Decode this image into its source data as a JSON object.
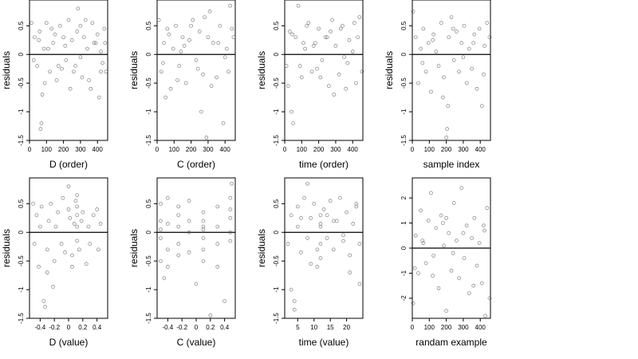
{
  "page": {
    "background": "#ffffff",
    "point_color": "#555555"
  },
  "chart_data": [
    {
      "type": "scatter",
      "xlabel": "D (order)",
      "ylabel": "residuals",
      "xlim": [
        0,
        460
      ],
      "ylim": [
        -1.5,
        0.95
      ],
      "xticks": [
        0,
        100,
        200,
        300,
        400
      ],
      "yticks": [
        0.5,
        0,
        -0.5,
        -1,
        -1.5
      ],
      "zero_line": true,
      "x": [
        12,
        30,
        45,
        60,
        70,
        85,
        100,
        120,
        140,
        160,
        180,
        200,
        215,
        230,
        250,
        270,
        285,
        300,
        310,
        320,
        340,
        360,
        380,
        400,
        410,
        420,
        440,
        450,
        25,
        55,
        90,
        130,
        170,
        210,
        260,
        330,
        350,
        390,
        430,
        65,
        75,
        110,
        150,
        190,
        240,
        280,
        300,
        370,
        420,
        445
      ],
      "y": [
        0.55,
        0.3,
        -0.2,
        0.4,
        -1.2,
        0.1,
        0.55,
        -0.3,
        0.2,
        -0.45,
        0.5,
        0.3,
        -0.1,
        0.6,
        0.25,
        -0.2,
        0.8,
        0.5,
        -0.4,
        0.3,
        0.1,
        -0.6,
        0.2,
        0.35,
        -0.75,
        0.05,
        0.45,
        -0.3,
        -0.1,
        0.25,
        -0.5,
        0.45,
        -0.2,
        0.15,
        -0.3,
        0.6,
        -0.45,
        0.2,
        -0.15,
        -1.3,
        -0.7,
        0.1,
        0.35,
        -0.25,
        -0.6,
        0.4,
        -0.05,
        0.55,
        -0.3,
        0.2
      ]
    },
    {
      "type": "scatter",
      "xlabel": "C (order)",
      "ylabel": "residuals",
      "xlim": [
        0,
        460
      ],
      "ylim": [
        -1.5,
        0.95
      ],
      "xticks": [
        0,
        100,
        200,
        300,
        400
      ],
      "yticks": [
        0.5,
        0,
        -0.5,
        -1,
        -1.5
      ],
      "zero_line": true,
      "x": [
        10,
        25,
        40,
        60,
        80,
        95,
        110,
        130,
        150,
        170,
        190,
        210,
        230,
        250,
        270,
        290,
        310,
        330,
        350,
        370,
        390,
        410,
        430,
        450,
        35,
        70,
        120,
        160,
        200,
        240,
        280,
        320,
        360,
        400,
        440,
        50,
        140,
        260,
        300,
        420
      ],
      "y": [
        0.6,
        -0.3,
        0.2,
        0.45,
        -0.6,
        0.1,
        0.5,
        -0.2,
        0.3,
        -0.5,
        0.25,
        0.6,
        -0.1,
        0.4,
        -0.35,
        -1.45,
        0.75,
        0.2,
        -0.4,
        0.5,
        -1.2,
        0.1,
        0.85,
        0.3,
        -0.15,
        0.35,
        -0.45,
        0.15,
        0.5,
        -0.25,
        0.65,
        -0.55,
        0.2,
        -0.05,
        0.45,
        -0.75,
        0.05,
        -1.0,
        0.3,
        -0.3
      ]
    },
    {
      "type": "scatter",
      "xlabel": "time (order)",
      "ylabel": "residuals",
      "xlim": [
        0,
        460
      ],
      "ylim": [
        -1.5,
        0.95
      ],
      "xticks": [
        0,
        100,
        200,
        300,
        400
      ],
      "yticks": [
        0.5,
        0,
        -0.5,
        -1,
        -1.5
      ],
      "zero_line": true,
      "x": [
        10,
        30,
        50,
        65,
        80,
        100,
        120,
        140,
        160,
        180,
        200,
        220,
        240,
        260,
        280,
        300,
        320,
        340,
        360,
        380,
        400,
        420,
        440,
        455,
        20,
        45,
        90,
        130,
        170,
        210,
        250,
        290,
        330,
        370,
        410,
        40,
        110,
        190,
        270,
        350,
        430
      ],
      "y": [
        -0.2,
        0.4,
        -1.2,
        0.3,
        0.85,
        -0.4,
        0.1,
        0.55,
        -0.3,
        0.2,
        0.45,
        -0.1,
        0.3,
        -0.55,
        0.6,
        0.15,
        -0.35,
        0.5,
        -0.6,
        0.25,
        0.05,
        -0.5,
        0.65,
        -0.3,
        -0.55,
        0.35,
        -0.2,
        0.5,
        0.15,
        -0.4,
        0.3,
        -0.7,
        0.45,
        -0.15,
        0.55,
        -1.0,
        0.2,
        -0.25,
        0.4,
        -0.05,
        0.3
      ]
    },
    {
      "type": "scatter",
      "xlabel": "sample index",
      "ylabel": "residuals",
      "xlim": [
        0,
        460
      ],
      "ylim": [
        -1.5,
        0.95
      ],
      "xticks": [
        0,
        100,
        200,
        300,
        400
      ],
      "yticks": [
        0.5,
        0,
        -0.5,
        -1,
        -1.5
      ],
      "zero_line": true,
      "x": [
        5,
        20,
        35,
        50,
        65,
        80,
        95,
        110,
        125,
        140,
        155,
        170,
        185,
        200,
        215,
        230,
        245,
        260,
        275,
        290,
        305,
        320,
        335,
        350,
        365,
        380,
        395,
        410,
        425,
        440,
        455,
        60,
        120,
        180,
        240,
        300,
        360,
        420,
        205,
        210
      ],
      "y": [
        0.75,
        0.3,
        -0.5,
        0.1,
        0.45,
        -0.3,
        0.2,
        -0.65,
        0.35,
        0.05,
        -0.2,
        0.55,
        -0.4,
        -1.45,
        0.3,
        0.65,
        -0.1,
        0.4,
        -0.3,
        0.2,
        0.5,
        -0.5,
        0.1,
        -0.25,
        0.35,
        -0.6,
        0.45,
        -0.9,
        0.15,
        0.55,
        0.3,
        -0.15,
        0.25,
        -0.75,
        0.45,
        -0.05,
        0.2,
        -0.35,
        -1.3,
        -0.9
      ]
    },
    {
      "type": "scatter",
      "xlabel": "D (value)",
      "ylabel": "residuals",
      "xlim": [
        -0.55,
        0.55
      ],
      "ylim": [
        -1.5,
        0.95
      ],
      "xticks": [
        -0.4,
        -0.2,
        0.0,
        0.2,
        0.4
      ],
      "yticks": [
        0.5,
        0,
        -0.5,
        -1,
        -1.5
      ],
      "zero_line": true,
      "x": [
        -0.5,
        -0.48,
        -0.45,
        -0.42,
        -0.4,
        -0.38,
        -0.35,
        -0.3,
        -0.28,
        -0.25,
        -0.2,
        -0.18,
        -0.15,
        -0.1,
        -0.08,
        -0.05,
        0.0,
        0.02,
        0.05,
        0.08,
        0.1,
        0.12,
        0.12,
        0.12,
        0.12,
        0.12,
        0.15,
        0.18,
        0.2,
        0.25,
        0.28,
        0.3,
        0.35,
        0.4,
        0.42,
        0.45,
        -0.33,
        -0.3,
        -0.22,
        0.0,
        0.05
      ],
      "y": [
        0.5,
        -0.2,
        0.3,
        -0.6,
        0.1,
        0.45,
        -1.2,
        -0.3,
        0.2,
        0.5,
        -0.5,
        0.1,
        0.35,
        -0.2,
        0.6,
        -0.35,
        0.4,
        0.25,
        -0.4,
        0.15,
        0.55,
        0.1,
        -0.15,
        0.3,
        0.45,
        0.65,
        -0.3,
        0.2,
        0.35,
        -0.55,
        0.1,
        -0.2,
        0.3,
        0.4,
        -0.3,
        0.15,
        -1.3,
        -0.7,
        -0.95,
        0.8,
        -0.6
      ]
    },
    {
      "type": "scatter",
      "xlabel": "C (value)",
      "ylabel": "residuals",
      "xlim": [
        -0.55,
        0.55
      ],
      "ylim": [
        -1.5,
        0.95
      ],
      "xticks": [
        -0.4,
        -0.2,
        0.0,
        0.2,
        0.4
      ],
      "yticks": [
        0.5,
        0,
        -0.5,
        -1,
        -1.5
      ],
      "zero_line": true,
      "x": [
        -0.5,
        -0.5,
        -0.5,
        -0.5,
        -0.5,
        -0.4,
        -0.4,
        -0.4,
        -0.4,
        -0.25,
        -0.25,
        -0.25,
        -0.25,
        -0.25,
        -0.1,
        -0.1,
        -0.1,
        -0.1,
        0.1,
        0.1,
        0.1,
        0.1,
        0.1,
        0.1,
        0.1,
        0.3,
        0.3,
        0.3,
        0.3,
        0.48,
        0.48,
        0.48,
        0.48,
        0.48,
        0.5,
        0.0,
        0.2,
        -0.45,
        0.4
      ],
      "y": [
        0.5,
        0.2,
        -0.1,
        -0.5,
        0.05,
        0.6,
        -0.3,
        0.15,
        -0.6,
        0.45,
        0.1,
        -0.2,
        -0.4,
        0.3,
        0.55,
        0.0,
        -0.35,
        0.2,
        0.35,
        0.1,
        -0.1,
        -0.3,
        0.2,
        -0.5,
        0.05,
        0.45,
        -0.2,
        0.1,
        -0.6,
        0.6,
        0.25,
        -0.15,
        0.4,
        0.0,
        0.85,
        -0.9,
        -1.45,
        -0.8,
        -1.2
      ]
    },
    {
      "type": "scatter",
      "xlabel": "time (value)",
      "ylabel": "residuals",
      "xlim": [
        1,
        25
      ],
      "ylim": [
        -1.5,
        0.95
      ],
      "xticks": [
        5,
        10,
        15,
        20
      ],
      "yticks": [
        0.5,
        0,
        -0.5,
        -1,
        -1.5
      ],
      "zero_line": true,
      "x": [
        2,
        3,
        4,
        5,
        5,
        6,
        7,
        8,
        9,
        10,
        11,
        12,
        12,
        12,
        12,
        12,
        13,
        14,
        15,
        16,
        17,
        18,
        19,
        20,
        21,
        22,
        23,
        24,
        3,
        6,
        9,
        14,
        19,
        23,
        4,
        8,
        11,
        16,
        21,
        24
      ],
      "y": [
        -0.2,
        0.3,
        -1.2,
        0.45,
        0.1,
        -0.35,
        0.6,
        -0.1,
        0.25,
        0.5,
        -0.3,
        0.1,
        -0.2,
        0.3,
        -0.45,
        0.15,
        0.4,
        -0.1,
        0.55,
        -0.3,
        0.2,
        0.6,
        -0.05,
        0.35,
        -0.4,
        0.15,
        0.5,
        -0.2,
        -1.0,
        0.25,
        -0.55,
        0.3,
        -0.15,
        0.45,
        -1.35,
        0.85,
        -0.6,
        0.2,
        -0.7,
        -0.9
      ]
    },
    {
      "type": "scatter",
      "xlabel": "randam example",
      "ylabel": "",
      "xlim": [
        0,
        460
      ],
      "ylim": [
        -2.8,
        2.8
      ],
      "xticks": [
        0,
        100,
        200,
        300,
        400
      ],
      "yticks": [
        2,
        1,
        0,
        -1,
        -2
      ],
      "zero_line": true,
      "x": [
        5,
        20,
        35,
        50,
        65,
        80,
        95,
        110,
        125,
        140,
        155,
        170,
        185,
        200,
        215,
        230,
        245,
        260,
        275,
        290,
        305,
        320,
        335,
        350,
        365,
        380,
        395,
        410,
        425,
        440,
        455,
        15,
        60,
        120,
        180,
        240,
        300,
        360,
        420,
        200,
        430
      ],
      "y": [
        -2.2,
        0.5,
        -1.0,
        1.5,
        0.2,
        -0.6,
        1.1,
        2.2,
        -0.3,
        0.8,
        -1.6,
        1.3,
        0.1,
        -2.5,
        0.6,
        -0.9,
        1.8,
        0.3,
        -1.2,
        2.4,
        -0.4,
        0.9,
        -1.8,
        0.4,
        1.2,
        -0.7,
        0.2,
        -1.4,
        0.7,
        1.6,
        -2.0,
        -0.8,
        0.3,
        -1.1,
        1.0,
        -0.2,
        0.6,
        -1.5,
        0.9,
        1.2,
        -2.7
      ]
    }
  ]
}
